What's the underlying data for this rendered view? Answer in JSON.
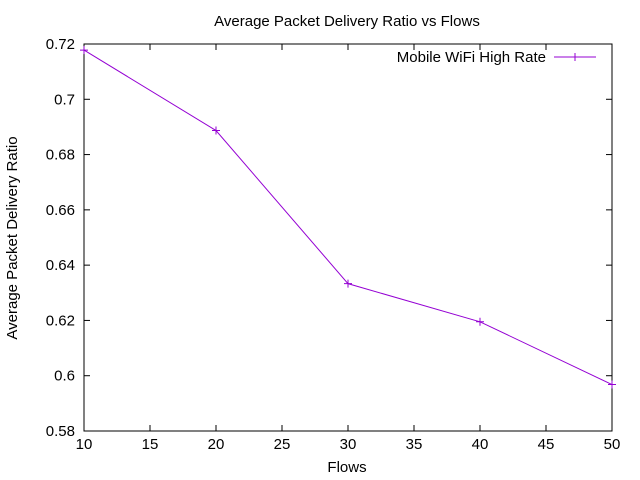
{
  "chart_data": {
    "type": "line",
    "title": "Average Packet Delivery Ratio vs Flows",
    "xlabel": "Flows",
    "ylabel": "Average Packet Delivery Ratio",
    "xlim": [
      10,
      50
    ],
    "ylim": [
      0.58,
      0.72
    ],
    "xticks": [
      10,
      15,
      20,
      25,
      30,
      35,
      40,
      45,
      50
    ],
    "yticks": [
      0.58,
      0.6,
      0.62,
      0.64,
      0.66,
      0.68,
      0.7,
      0.72
    ],
    "xtick_labels": [
      "10",
      "15",
      "20",
      "25",
      "30",
      "35",
      "40",
      "45",
      "50"
    ],
    "ytick_labels": [
      "0.58",
      "0.6",
      "0.62",
      "0.64",
      "0.66",
      "0.68",
      "0.7",
      "0.72"
    ],
    "grid": false,
    "legend_position": "top-right",
    "series": [
      {
        "name": "Mobile WiFi High Rate",
        "color": "#9400d3",
        "marker": "plus",
        "x": [
          10,
          20,
          30,
          40,
          50
        ],
        "y": [
          0.7178,
          0.6887,
          0.6333,
          0.6195,
          0.5968
        ]
      }
    ]
  }
}
